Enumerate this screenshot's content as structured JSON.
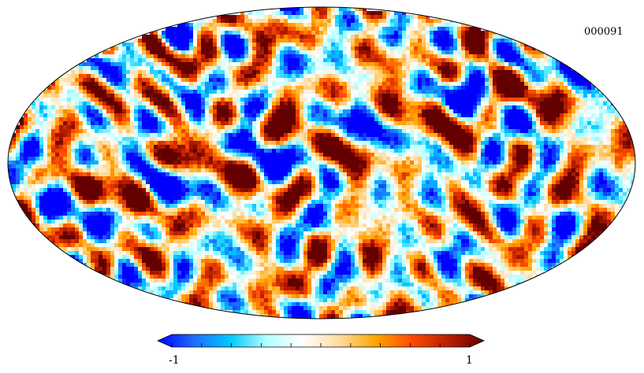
{
  "map": {
    "id_label": "000091",
    "projection": "mollweide"
  },
  "colorbar": {
    "min_label": "-1",
    "max_label": "1",
    "range": [
      -1,
      1
    ],
    "tick_count": 11,
    "colormap": [
      "#0000ff",
      "#1e6cff",
      "#00c8ff",
      "#b4ffff",
      "#ffffff",
      "#ffdca0",
      "#ffa500",
      "#ff4b00",
      "#b91e00",
      "#640000"
    ]
  }
}
